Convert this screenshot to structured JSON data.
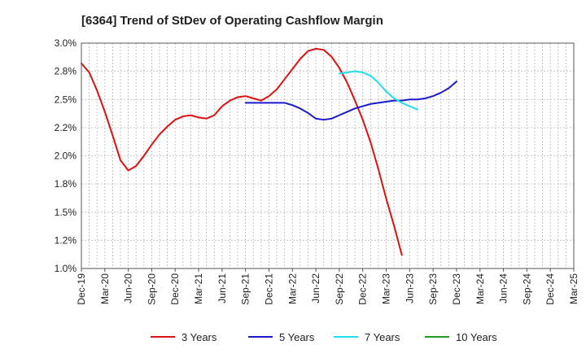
{
  "chart_data": {
    "type": "line",
    "title": "[6364]  Trend of StDev of Operating Cashflow Margin",
    "xlabel": "",
    "ylabel": "",
    "x_ticks": [
      "Dec-19",
      "Mar-20",
      "Jun-20",
      "Sep-20",
      "Dec-20",
      "Mar-21",
      "Jun-21",
      "Sep-21",
      "Dec-21",
      "Mar-22",
      "Jun-22",
      "Sep-22",
      "Dec-22",
      "Mar-23",
      "Jun-23",
      "Sep-23",
      "Dec-23",
      "Mar-24",
      "Jun-24",
      "Sep-24",
      "Dec-24",
      "Mar-25"
    ],
    "y_ticks": [
      "1.0%",
      "1.2%",
      "1.5%",
      "1.8%",
      "2.0%",
      "2.2%",
      "2.5%",
      "2.8%",
      "3.0%"
    ],
    "ylim": [
      1.0,
      3.0
    ],
    "grid": true,
    "legend_position": "bottom",
    "series": [
      {
        "name": "3 Years",
        "color": "#dd1111",
        "start_index": 0,
        "values": [
          2.82,
          2.74,
          2.58,
          2.39,
          2.18,
          1.96,
          1.87,
          1.91,
          2.0,
          2.1,
          2.19,
          2.26,
          2.32,
          2.35,
          2.36,
          2.34,
          2.33,
          2.36,
          2.44,
          2.49,
          2.52,
          2.53,
          2.51,
          2.49,
          2.53,
          2.59,
          2.68,
          2.77,
          2.86,
          2.93,
          2.95,
          2.94,
          2.88,
          2.78,
          2.65,
          2.49,
          2.32,
          2.12,
          1.88,
          1.62,
          1.38,
          1.12
        ]
      },
      {
        "name": "5 Years",
        "color": "#1a1acc",
        "start_index": 21,
        "values": [
          2.47,
          2.47,
          2.47,
          2.47,
          2.47,
          2.47,
          2.45,
          2.42,
          2.38,
          2.33,
          2.32,
          2.33,
          2.36,
          2.39,
          2.42,
          2.44,
          2.46,
          2.47,
          2.48,
          2.49,
          2.49,
          2.5,
          2.5,
          2.51,
          2.53,
          2.56,
          2.6,
          2.66
        ]
      },
      {
        "name": "7 Years",
        "color": "#22ddee",
        "start_index": 33,
        "values": [
          2.73,
          2.74,
          2.75,
          2.74,
          2.71,
          2.65,
          2.57,
          2.51,
          2.47,
          2.44,
          2.41
        ]
      },
      {
        "name": "10 Years",
        "color": "#229922",
        "start_index": 0,
        "values": []
      }
    ]
  }
}
